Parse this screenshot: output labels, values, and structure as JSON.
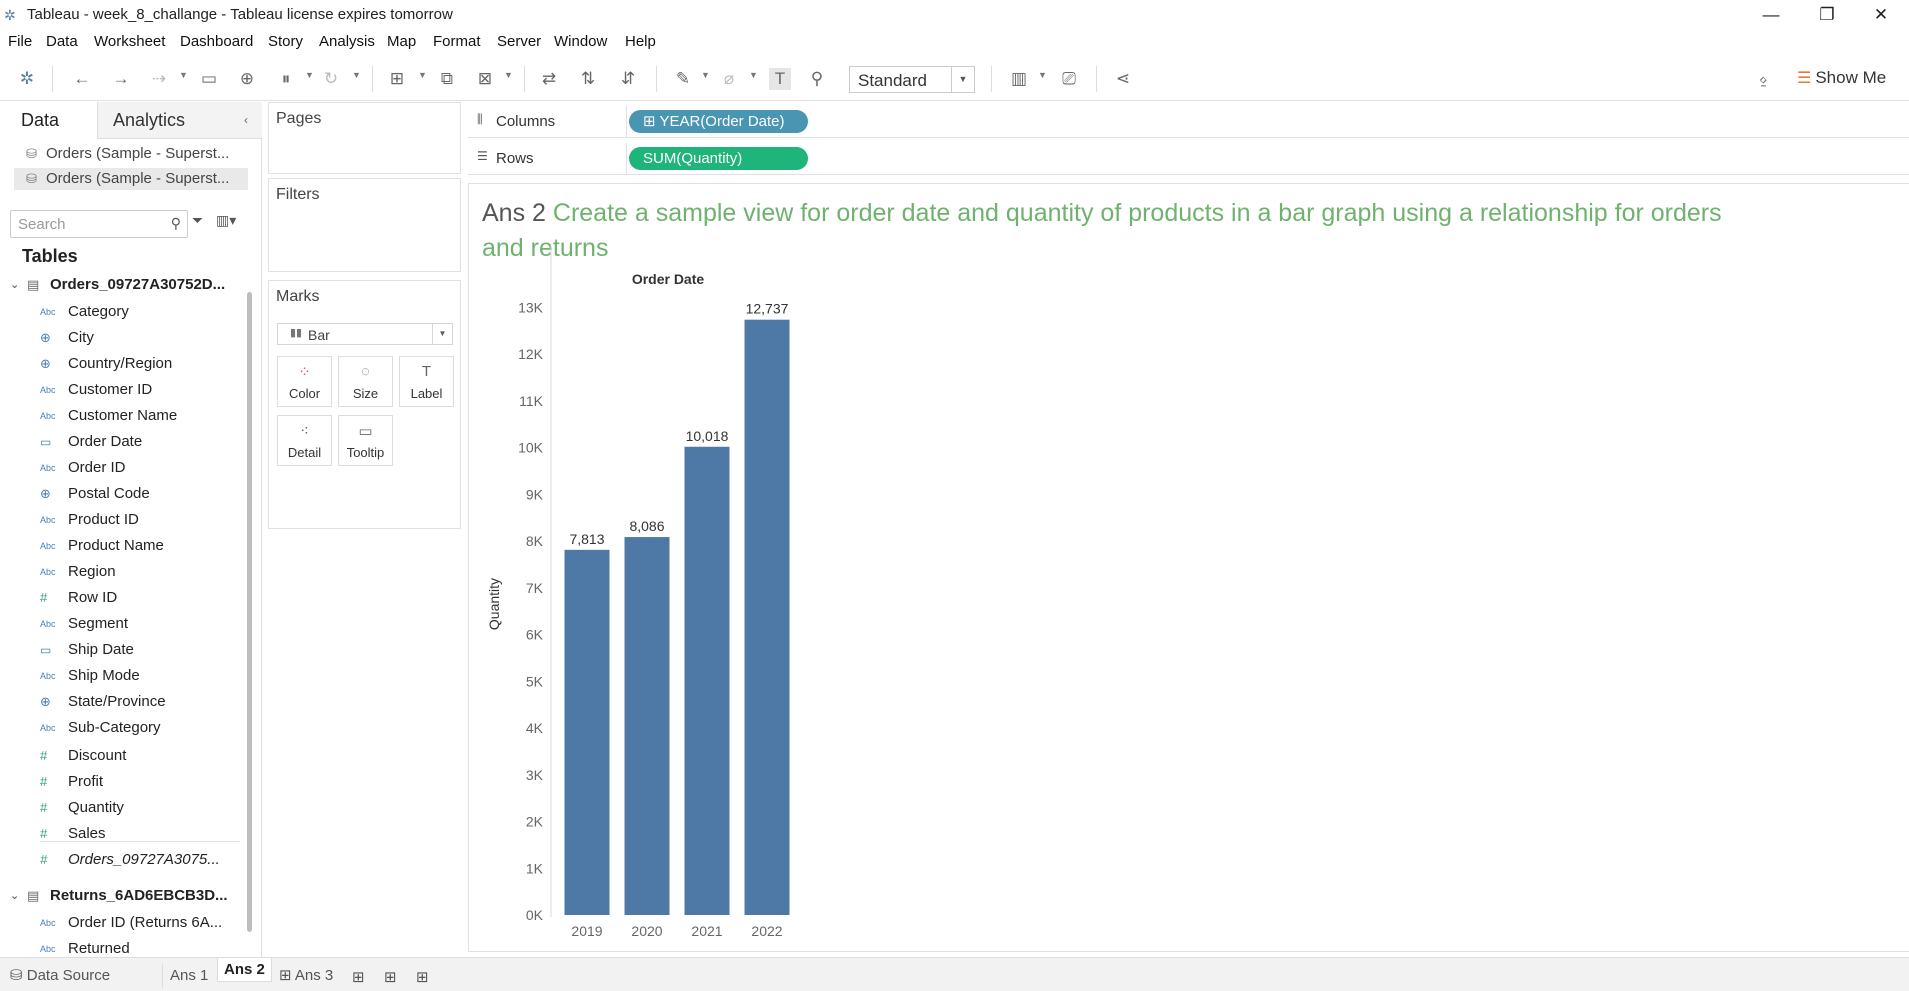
{
  "window": {
    "title": "Tableau - week_8_challange - Tableau license expires tomorrow",
    "controls": [
      "—",
      "❐",
      "✕"
    ]
  },
  "menu": [
    "File",
    "Data",
    "Worksheet",
    "Dashboard",
    "Story",
    "Analysis",
    "Map",
    "Format",
    "Server",
    "Window",
    "Help"
  ],
  "toolbar": {
    "fit_value": "Standard",
    "show_me_label": "Show Me"
  },
  "data_pane": {
    "tabs": [
      "Data",
      "Analytics"
    ],
    "sources": [
      "Orders (Sample - Superst...",
      "Orders (Sample - Superst..."
    ],
    "search_placeholder": "Search",
    "tables_heading": "Tables",
    "tables": [
      {
        "name": "Orders_09727A30752D...",
        "fields": [
          {
            "type": "Abc",
            "name": "Category"
          },
          {
            "type": "globe",
            "name": "City"
          },
          {
            "type": "globe",
            "name": "Country/Region"
          },
          {
            "type": "Abc",
            "name": "Customer ID"
          },
          {
            "type": "Abc",
            "name": "Customer Name"
          },
          {
            "type": "date",
            "name": "Order Date"
          },
          {
            "type": "Abc",
            "name": "Order ID"
          },
          {
            "type": "globe",
            "name": "Postal Code"
          },
          {
            "type": "Abc",
            "name": "Product ID"
          },
          {
            "type": "Abc",
            "name": "Product Name"
          },
          {
            "type": "Abc",
            "name": "Region"
          },
          {
            "type": "#",
            "name": "Row ID"
          },
          {
            "type": "Abc",
            "name": "Segment"
          },
          {
            "type": "date",
            "name": "Ship Date"
          },
          {
            "type": "Abc",
            "name": "Ship Mode"
          },
          {
            "type": "globe",
            "name": "State/Province"
          },
          {
            "type": "Abc",
            "name": "Sub-Category"
          },
          {
            "type": "#",
            "name": "Discount"
          },
          {
            "type": "#",
            "name": "Profit"
          },
          {
            "type": "#",
            "name": "Quantity"
          },
          {
            "type": "#",
            "name": "Sales"
          },
          {
            "type": "#",
            "name": "Orders_09727A3075..."
          }
        ]
      },
      {
        "name": "Returns_6AD6EBCB3D...",
        "fields": [
          {
            "type": "Abc",
            "name": "Order ID (Returns 6A..."
          },
          {
            "type": "Abc",
            "name": "Returned"
          }
        ]
      }
    ]
  },
  "cards": {
    "pages": "Pages",
    "filters": "Filters",
    "marks": "Marks",
    "mark_type": "Bar",
    "mark_buttons": [
      "Color",
      "Size",
      "Label",
      "Detail",
      "Tooltip"
    ]
  },
  "shelves": {
    "columns_label": "Columns",
    "columns_pill": "YEAR(Order Date)",
    "rows_label": "Rows",
    "rows_pill": "SUM(Quantity)"
  },
  "sheet": {
    "title_prefix": "Ans 2",
    "title_text": "Create a sample view for order date and quantity of products in a bar graph using a relationship for orders and returns"
  },
  "chart_data": {
    "type": "bar",
    "title": "",
    "xlabel": "Order Date",
    "ylabel": "Quantity",
    "categories": [
      "2019",
      "2020",
      "2021",
      "2022"
    ],
    "values": [
      7813,
      8086,
      10018,
      12737
    ],
    "data_labels": [
      "7,813",
      "8,086",
      "10,018",
      "12,737"
    ],
    "ylim": [
      0,
      13800
    ],
    "yticks": [
      0,
      1000,
      2000,
      3000,
      4000,
      5000,
      6000,
      7000,
      8000,
      9000,
      10000,
      11000,
      12000,
      13000
    ],
    "ytick_labels": [
      "0K",
      "1K",
      "2K",
      "3K",
      "4K",
      "5K",
      "6K",
      "7K",
      "8K",
      "9K",
      "10K",
      "11K",
      "12K",
      "13K"
    ],
    "bar_color": "#4e79a7",
    "grid": false
  },
  "status_bar": {
    "tabs": [
      "Data Source",
      "Ans 1",
      "Ans 2",
      "Ans 3"
    ]
  }
}
